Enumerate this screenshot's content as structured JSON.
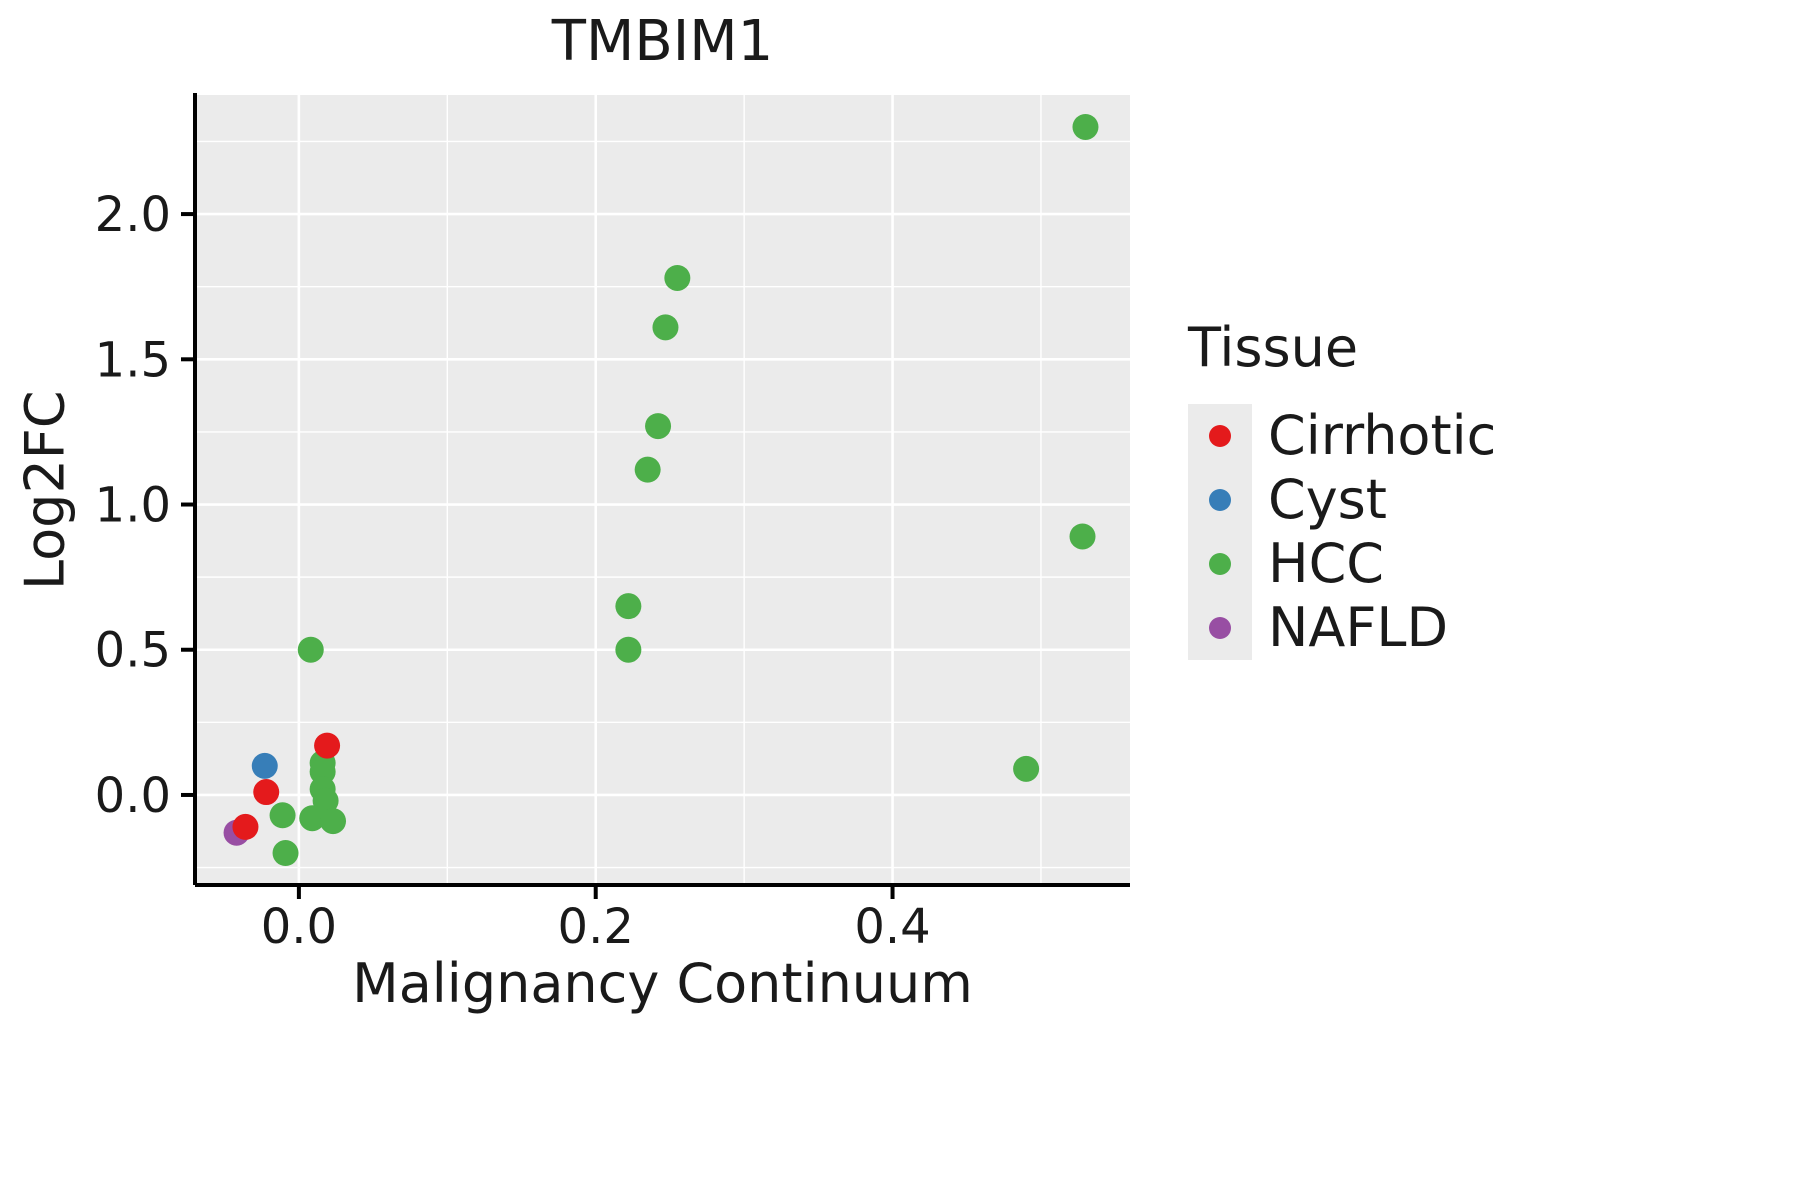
{
  "chart_data": {
    "type": "scatter",
    "title": "TMBIM1",
    "xlabel": "Malignancy Continuum",
    "ylabel": "Log2FC",
    "xlim": [
      -0.07,
      0.56
    ],
    "ylim": [
      -0.31,
      2.41
    ],
    "x_ticks": [
      0.0,
      0.2,
      0.4
    ],
    "x_tick_labels": [
      "0.0",
      "0.2",
      "0.4"
    ],
    "y_ticks": [
      0.0,
      0.5,
      1.0,
      1.5,
      2.0
    ],
    "y_tick_labels": [
      "0.0",
      "0.5",
      "1.0",
      "1.5",
      "2.0"
    ],
    "x_minor_ticks": [
      0.1,
      0.3,
      0.5
    ],
    "y_minor_ticks": [
      -0.25,
      0.25,
      0.75,
      1.25,
      1.75,
      2.25
    ],
    "grid": "major+minor",
    "panel_bg": "#EBEBEB",
    "grid_color": "#FFFFFF",
    "axis_color": "#000000",
    "text_color": "#1a1a1a",
    "legend": {
      "title": "Tissue",
      "position": "right",
      "entries": [
        {
          "label": "Cirrhotic",
          "color": "#E41A1C"
        },
        {
          "label": "Cyst",
          "color": "#377EB8"
        },
        {
          "label": "HCC",
          "color": "#4DAF4A"
        },
        {
          "label": "NAFLD",
          "color": "#984EA3"
        }
      ]
    },
    "series": [
      {
        "name": "Cirrhotic",
        "color": "#E41A1C",
        "points": [
          [
            0.019,
            0.17
          ],
          [
            -0.022,
            0.01
          ],
          [
            -0.036,
            -0.11
          ]
        ]
      },
      {
        "name": "Cyst",
        "color": "#377EB8",
        "points": [
          [
            -0.023,
            0.1
          ]
        ]
      },
      {
        "name": "HCC",
        "color": "#4DAF4A",
        "points": [
          [
            0.53,
            2.3
          ],
          [
            0.255,
            1.78
          ],
          [
            0.247,
            1.61
          ],
          [
            0.242,
            1.27
          ],
          [
            0.235,
            1.12
          ],
          [
            0.528,
            0.89
          ],
          [
            0.222,
            0.65
          ],
          [
            0.222,
            0.5
          ],
          [
            0.008,
            0.5
          ],
          [
            0.49,
            0.09
          ],
          [
            0.016,
            0.11
          ],
          [
            0.016,
            0.08
          ],
          [
            0.016,
            0.02
          ],
          [
            0.018,
            -0.02
          ],
          [
            0.009,
            -0.08
          ],
          [
            0.023,
            -0.09
          ],
          [
            -0.011,
            -0.07
          ],
          [
            -0.009,
            -0.2
          ]
        ]
      },
      {
        "name": "NAFLD",
        "color": "#984EA3",
        "points": [
          [
            -0.042,
            -0.13
          ]
        ]
      }
    ]
  }
}
